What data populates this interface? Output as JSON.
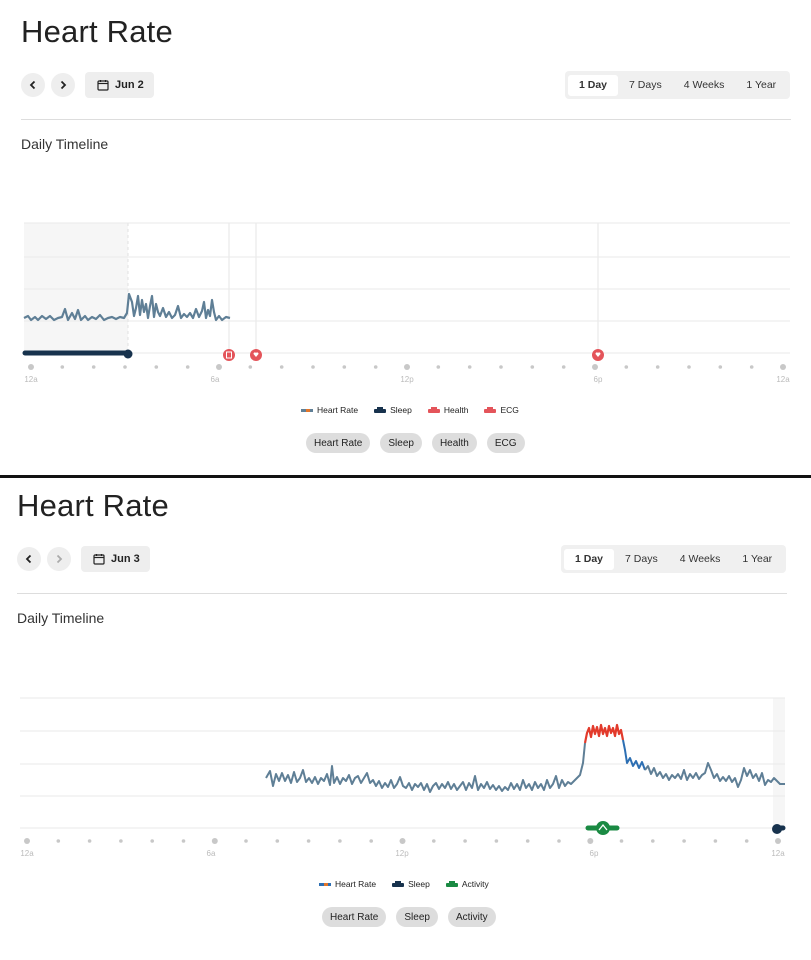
{
  "panels": [
    {
      "title": "Heart Rate",
      "date_label": "Jun 2",
      "range_options": [
        "1 Day",
        "7 Days",
        "4 Weeks",
        "1 Year"
      ],
      "active_range": "1 Day",
      "section_title": "Daily Timeline",
      "x_tick_labels": [
        "12a",
        "6a",
        "12p",
        "6p",
        "12a"
      ],
      "legend": [
        {
          "label": "Heart Rate",
          "icon": "heart-rate-icon"
        },
        {
          "label": "Sleep",
          "icon": "sleep-icon"
        },
        {
          "label": "Health",
          "icon": "health-icon"
        },
        {
          "label": "ECG",
          "icon": "ecg-icon"
        }
      ],
      "filters": [
        "Heart Rate",
        "Sleep",
        "Health",
        "ECG"
      ]
    },
    {
      "title": "Heart Rate",
      "date_label": "Jun 3",
      "range_options": [
        "1 Day",
        "7 Days",
        "4 Weeks",
        "1 Year"
      ],
      "active_range": "1 Day",
      "section_title": "Daily Timeline",
      "x_tick_labels": [
        "12a",
        "6a",
        "12p",
        "6p",
        "12a"
      ],
      "legend": [
        {
          "label": "Heart Rate",
          "icon": "heart-rate-icon"
        },
        {
          "label": "Sleep",
          "icon": "sleep-icon"
        },
        {
          "label": "Activity",
          "icon": "activity-icon"
        }
      ],
      "filters": [
        "Heart Rate",
        "Sleep",
        "Activity"
      ]
    }
  ],
  "colors": {
    "heart_rate_line": "#5f7f96",
    "heart_rate_high": "#e23a2b",
    "sleep": "#17324d",
    "health": "#e4545a",
    "activity": "#1a8a43",
    "grid": "#e9e9e9"
  }
}
